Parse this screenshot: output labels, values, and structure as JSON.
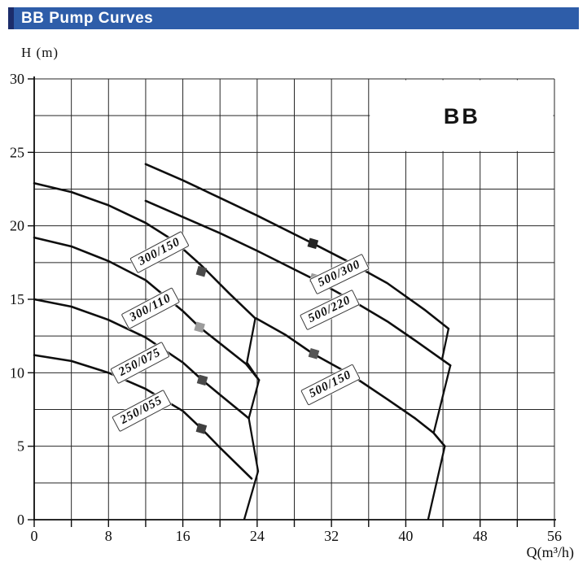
{
  "banner": {
    "title": "BB Pump Curves",
    "bg_color": "#2e5da9",
    "edge_color": "#1c2d6b",
    "text_color": "#ffffff"
  },
  "chart_data": {
    "type": "line",
    "title": "BB Pump Curves",
    "xlabel": "Q(m³/h)",
    "ylabel": "H (m)",
    "xlim": [
      0,
      56
    ],
    "ylim": [
      0,
      30
    ],
    "x_ticks": [
      0,
      8,
      16,
      24,
      32,
      40,
      48,
      56
    ],
    "y_ticks": [
      0,
      5,
      10,
      15,
      20,
      25,
      30
    ],
    "x_grid_step": 4,
    "y_grid_step": 2.5,
    "grid": "on",
    "inset": {
      "label": "BB",
      "x0": 36,
      "x1": 56,
      "y0": 25,
      "y1": 30
    },
    "curve_color": "#0e0e0e",
    "series": [
      {
        "name": "300/150",
        "points": [
          [
            0,
            22.9
          ],
          [
            4,
            22.3
          ],
          [
            8,
            21.4
          ],
          [
            12,
            20.2
          ],
          [
            15,
            19.0
          ],
          [
            18,
            17.3
          ],
          [
            21,
            15.4
          ],
          [
            23.8,
            13.7
          ]
        ],
        "marker": [
          18,
          16.9
        ],
        "marker_color": "#4a4a4a",
        "label_at": [
          13.5,
          18.2
        ],
        "label_rot": -28
      },
      {
        "name": "300/110",
        "points": [
          [
            0,
            19.2
          ],
          [
            4,
            18.6
          ],
          [
            8,
            17.6
          ],
          [
            12,
            16.3
          ],
          [
            16,
            14.2
          ],
          [
            17.8,
            13.1
          ],
          [
            20,
            12.0
          ],
          [
            22.8,
            10.6
          ],
          [
            24.2,
            9.5
          ]
        ],
        "marker": [
          17.8,
          13.1
        ],
        "marker_color": "#9c9c9c",
        "label_at": [
          12.5,
          14.4
        ],
        "label_rot": -28
      },
      {
        "name": "250/075",
        "points": [
          [
            0,
            15.0
          ],
          [
            4,
            14.5
          ],
          [
            8,
            13.6
          ],
          [
            12,
            12.4
          ],
          [
            16,
            10.7
          ],
          [
            18.1,
            9.5
          ],
          [
            20,
            8.5
          ],
          [
            23.1,
            6.9
          ]
        ],
        "marker": [
          18.1,
          9.5
        ],
        "marker_color": "#4a4a4a",
        "label_at": [
          11.4,
          10.7
        ],
        "label_rot": -28
      },
      {
        "name": "250/055",
        "points": [
          [
            0,
            11.2
          ],
          [
            4,
            10.8
          ],
          [
            8,
            10.0
          ],
          [
            12,
            8.9
          ],
          [
            16,
            7.4
          ],
          [
            18,
            6.2
          ],
          [
            20,
            4.9
          ],
          [
            23.4,
            2.8
          ]
        ],
        "marker": [
          18,
          6.2
        ],
        "marker_color": "#3f3f3f",
        "label_at": [
          11.6,
          7.4
        ],
        "label_rot": -28
      },
      {
        "name": "500/300",
        "points": [
          [
            12,
            24.2
          ],
          [
            16,
            23.1
          ],
          [
            20,
            21.9
          ],
          [
            24,
            20.7
          ],
          [
            30,
            18.8
          ],
          [
            34,
            17.5
          ],
          [
            38,
            16.1
          ],
          [
            42,
            14.3
          ],
          [
            44.6,
            13.0
          ]
        ],
        "marker": [
          30,
          18.8
        ],
        "marker_color": "#242424",
        "label_at": [
          32.9,
          16.7
        ],
        "label_rot": -26
      },
      {
        "name": "500/220",
        "points": [
          [
            12,
            21.7
          ],
          [
            16,
            20.6
          ],
          [
            20,
            19.5
          ],
          [
            24,
            18.3
          ],
          [
            30,
            16.4
          ],
          [
            34,
            15.0
          ],
          [
            38,
            13.5
          ],
          [
            41,
            12.2
          ],
          [
            43.9,
            10.9
          ],
          [
            44.8,
            10.5
          ]
        ],
        "marker": [
          30.2,
          16.4
        ],
        "marker_color": "#9c9c9c",
        "label_at": [
          31.8,
          14.3
        ],
        "label_rot": -26
      },
      {
        "name": "500/150",
        "points": [
          [
            23.9,
            13.7
          ],
          [
            27,
            12.6
          ],
          [
            30,
            11.3
          ],
          [
            34,
            9.9
          ],
          [
            38,
            8.2
          ],
          [
            41,
            6.9
          ],
          [
            43.0,
            5.9
          ],
          [
            44.2,
            5.0
          ]
        ],
        "marker": [
          30.1,
          11.3
        ],
        "marker_color": "#555555",
        "label_at": [
          31.9,
          9.2
        ],
        "label_rot": -27
      }
    ],
    "end_of_curve_lines": [
      {
        "group": "250-300",
        "points": [
          [
            23.8,
            13.7
          ],
          [
            22.9,
            10.7
          ],
          [
            24.2,
            9.5
          ],
          [
            23.1,
            6.9
          ],
          [
            24.1,
            3.3
          ],
          [
            22.6,
            0
          ]
        ]
      },
      {
        "group": "500",
        "points": [
          [
            44.6,
            13.0
          ],
          [
            43.9,
            10.9
          ],
          [
            44.8,
            10.5
          ],
          [
            43.0,
            5.9
          ],
          [
            44.2,
            5.0
          ],
          [
            42.4,
            0
          ]
        ]
      }
    ]
  }
}
